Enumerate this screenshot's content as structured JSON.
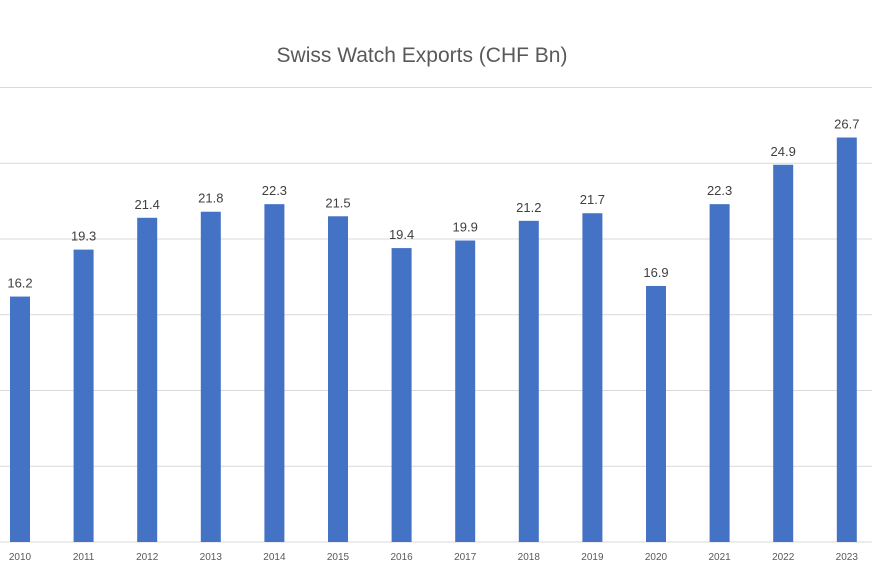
{
  "chart_data": {
    "type": "bar",
    "title": "Swiss Watch Exports (CHF Bn)",
    "xlabel": "",
    "ylabel": "",
    "categories": [
      "2010",
      "2011",
      "2012",
      "2013",
      "2014",
      "2015",
      "2016",
      "2017",
      "2018",
      "2019",
      "2020",
      "2021",
      "2022",
      "2023"
    ],
    "values": [
      16.2,
      19.3,
      21.4,
      21.8,
      22.3,
      21.5,
      19.4,
      19.9,
      21.2,
      21.7,
      16.9,
      22.3,
      24.9,
      26.7
    ],
    "ylim": [
      0,
      30
    ],
    "gridlines": [
      0,
      5,
      10,
      15,
      20,
      25,
      30
    ],
    "grid": true,
    "data_labels": true,
    "legend": "none",
    "bar_color": "#4472C4",
    "label_color": "#404040",
    "gridline_color": "#D9D9D9"
  }
}
